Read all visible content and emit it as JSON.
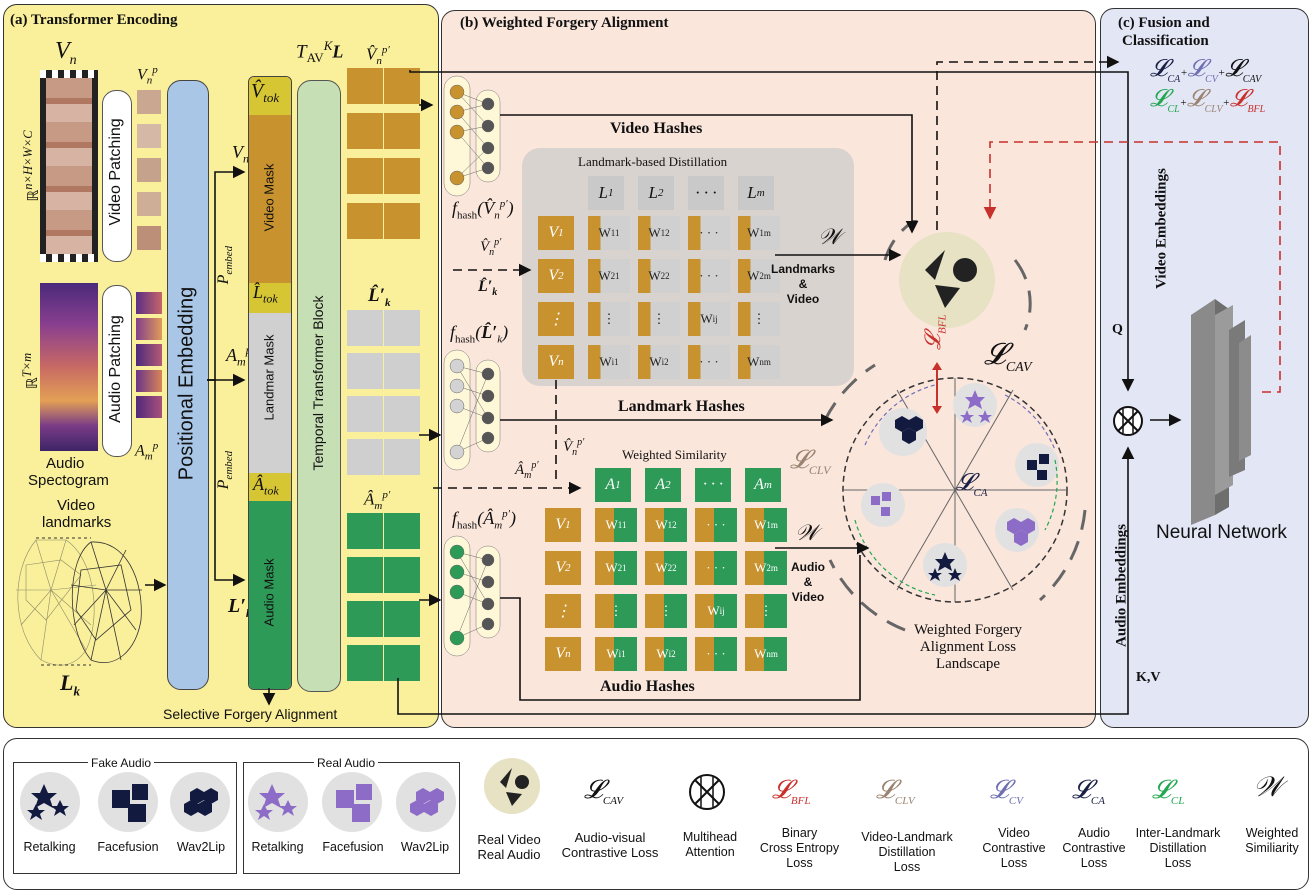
{
  "panels": {
    "a_title": "(a) Transformer Encoding",
    "b_title": "(b) Weighted Forgery Alignment",
    "c_title_1": "(c) Fusion and",
    "c_title_2": "Classification"
  },
  "encoding": {
    "vn": "V",
    "vn_sub": "n",
    "video_dims": "ℝ",
    "video_dims_sup": "n×H×W×C",
    "video_patching": "Video Patching",
    "vnp": "V",
    "vnp_sub": "n",
    "vnp_sup": "p",
    "audio_dims": "ℝ",
    "audio_dims_sup": "T×m",
    "audio_patching": "Audio Patching",
    "amp": "A",
    "amp_sub": "m",
    "amp_sup": "p",
    "audio_spec_1": "Audio",
    "audio_spec_2": "Spectogram",
    "landmarks_1": "Video",
    "landmarks_2": "landmarks",
    "lk": "L",
    "lk_sub": "k",
    "positional_embedding": "Positional Embedding",
    "p_embed_1": "P",
    "p_embed_1_sub": "embed",
    "p_embed_2": "P",
    "p_embed_2_sub": "embed",
    "vnp_prime": "V",
    "vnp_prime_sub": "n",
    "vnp_prime_sup": "p′",
    "amp_prime": "A",
    "amp_prime_sub": "m",
    "amp_prime_sup": "p′",
    "lk_prime": "L′",
    "lk_prime_sub": "k",
    "v_tok": "V̂",
    "v_tok_sub": "tok",
    "l_tok": "L̂",
    "l_tok_sub": "tok",
    "a_tok": "Â",
    "a_tok_sub": "tok",
    "video_mask": "Video Mask",
    "landmark_mask": "Landmar Mask",
    "audio_mask": "Audio Mask",
    "t_av": "T",
    "t_av_sub": "AV",
    "t_av_sup": "K",
    "t_av_l": "L",
    "temporal_block": "Temporal Transformer Block",
    "vnp_hat": "V̂",
    "vnp_hat_sub": "n",
    "vnp_hat_sup": "p′",
    "lk_hat": "L̂′",
    "lk_hat_sub": "k",
    "amp_hat": "Â",
    "amp_hat_sub": "m",
    "amp_hat_sup": "p′",
    "selective": "Selective Forgery Alignment"
  },
  "alignment": {
    "video_hashes": "Video Hashes",
    "landmark_hashes": "Landmark Hashes",
    "audio_hashes": "Audio Hashes",
    "f_hash": "f",
    "f_hash_sub": "hash",
    "fhash_v_arg": "V̂",
    "fhash_v_arg_sub": "n",
    "fhash_v_arg_sup": "p′",
    "fhash_l_arg": "L̂′",
    "fhash_l_arg_sub": "k",
    "fhash_a_arg": "Â",
    "fhash_a_arg_sub": "m",
    "fhash_a_arg_sup": "p′",
    "ld_title": "Landmark-based Distillation",
    "ws_title": "Weighted Similarity",
    "l_headers": [
      "L",
      "L",
      "· · ·",
      "L"
    ],
    "l_headers_sub": [
      "1",
      "2",
      "",
      "m"
    ],
    "a_headers": [
      "A",
      "A",
      "· · ·",
      "A"
    ],
    "a_headers_sub": [
      "1",
      "2",
      "",
      "m"
    ],
    "row_labels": [
      "V",
      "V",
      "⋮",
      "V"
    ],
    "row_labels_sub": [
      "1",
      "2",
      "",
      "n"
    ],
    "w_row1": [
      "W",
      "W",
      "· · ·",
      "W"
    ],
    "w_row1_sub": [
      "11",
      "12",
      "",
      "1m"
    ],
    "w_row2": [
      "W",
      "W",
      "· · ·",
      "W"
    ],
    "w_row2_sub": [
      "21",
      "22",
      "",
      "2m"
    ],
    "w_row3": [
      "⋮",
      "⋮",
      "W",
      "⋮"
    ],
    "w_row3_sub": [
      "",
      "",
      "ij",
      ""
    ],
    "w_row4": [
      "W",
      "W",
      "· · ·",
      "W"
    ],
    "w_row4_sub": [
      "i1",
      "i2",
      "",
      "nm"
    ],
    "w_sym": "𝒲",
    "lv_1": "Landmarks",
    "lv_2": "&",
    "lv_3": "Video",
    "av_1": "Audio",
    "av_2": "&",
    "av_3": "Video",
    "mid_vnp": "V̂",
    "mid_vnp_sub": "n",
    "mid_vnp_sup": "p′",
    "mid_lk": "L̂′",
    "mid_lk_sub": "k",
    "mid2_vnp": "V̂",
    "mid2_vnp_sub": "n",
    "mid2_vnp_sup": "p′",
    "mid2_amp": "Â",
    "mid2_amp_sub": "m",
    "mid2_amp_sup": "p′",
    "landscape_1": "Weighted Forgery",
    "landscape_2": "Alignment Loss",
    "landscape_3": "Landscape",
    "l_cav": "𝓛",
    "l_cav_sub": "CAV",
    "l_bfl": "𝓛",
    "l_bfl_sub": "BFL",
    "l_clv": "𝓛",
    "l_clv_sub": "CLV",
    "l_ca": "𝓛",
    "l_ca_sub": "CA"
  },
  "fusion": {
    "eq1": [
      "𝓛",
      "+",
      "𝓛",
      "+",
      "𝓛"
    ],
    "eq1_sub": [
      "CA",
      "",
      "CV",
      "",
      "CAV"
    ],
    "eq2": [
      "𝓛",
      "+",
      "𝓛",
      "+",
      "𝓛"
    ],
    "eq2_sub": [
      "CL",
      "",
      "CLV",
      "",
      "BFL"
    ],
    "video_embeddings": "Video Embeddings",
    "audio_embeddings": "Audio Embeddings",
    "q": "Q",
    "kv": "K,V",
    "neural_network": "Neural Network"
  },
  "legend": {
    "fake_audio": "Fake Audio",
    "real_audio": "Real Audio",
    "fake_items": [
      "Retalking",
      "Facefusion",
      "Wav2Lip"
    ],
    "real_items": [
      "Retalking",
      "Facefusion",
      "Wav2Lip"
    ],
    "real_video_1": "Real Video",
    "real_video_2": "Real Audio",
    "cav_label_1": "Audio-visual",
    "cav_label_2": "Contrastive Loss",
    "mha_label_1": "Multihead",
    "mha_label_2": "Attention",
    "bfl_label_1": "Binary",
    "bfl_label_2": "Cross Entropy",
    "bfl_label_3": "Loss",
    "clv_label_1": "Video-Landmark",
    "clv_label_2": "Distillation",
    "clv_label_3": "Loss",
    "cv_label_1": "Video",
    "cv_label_2": "Contrastive",
    "cv_label_3": "Loss",
    "ca_label_1": "Audio",
    "ca_label_2": "Contrastive",
    "ca_label_3": "Loss",
    "cl_label_1": "Inter-Landmark",
    "cl_label_2": "Distillation",
    "cl_label_3": "Loss",
    "w_label_1": "Weighted",
    "w_label_2": "Similiarity",
    "sym_l": "𝓛",
    "sym_cav": "CAV",
    "sym_bfl": "BFL",
    "sym_clv": "CLV",
    "sym_cv": "CV",
    "sym_ca": "CA",
    "sym_cl": "CL",
    "sym_w": "𝒲"
  },
  "colors": {
    "panel_a": "#faef9a",
    "panel_b": "#fbe6dc",
    "panel_c": "#e3e6f5",
    "gold": "#c8922e",
    "green": "#2e9a58",
    "gray": "#cfcfcf",
    "blue_bar": "#a9c6e6",
    "temporal_bar": "#c6dfb5",
    "l_cav": "#111111",
    "l_bfl": "#c8302b",
    "l_clv": "#9a8370",
    "l_cv": "#6f6fb4",
    "l_ca": "#1a1f45",
    "l_cl": "#22a650",
    "fake_icon": "#131a40",
    "real_icon": "#8c6cc7"
  }
}
